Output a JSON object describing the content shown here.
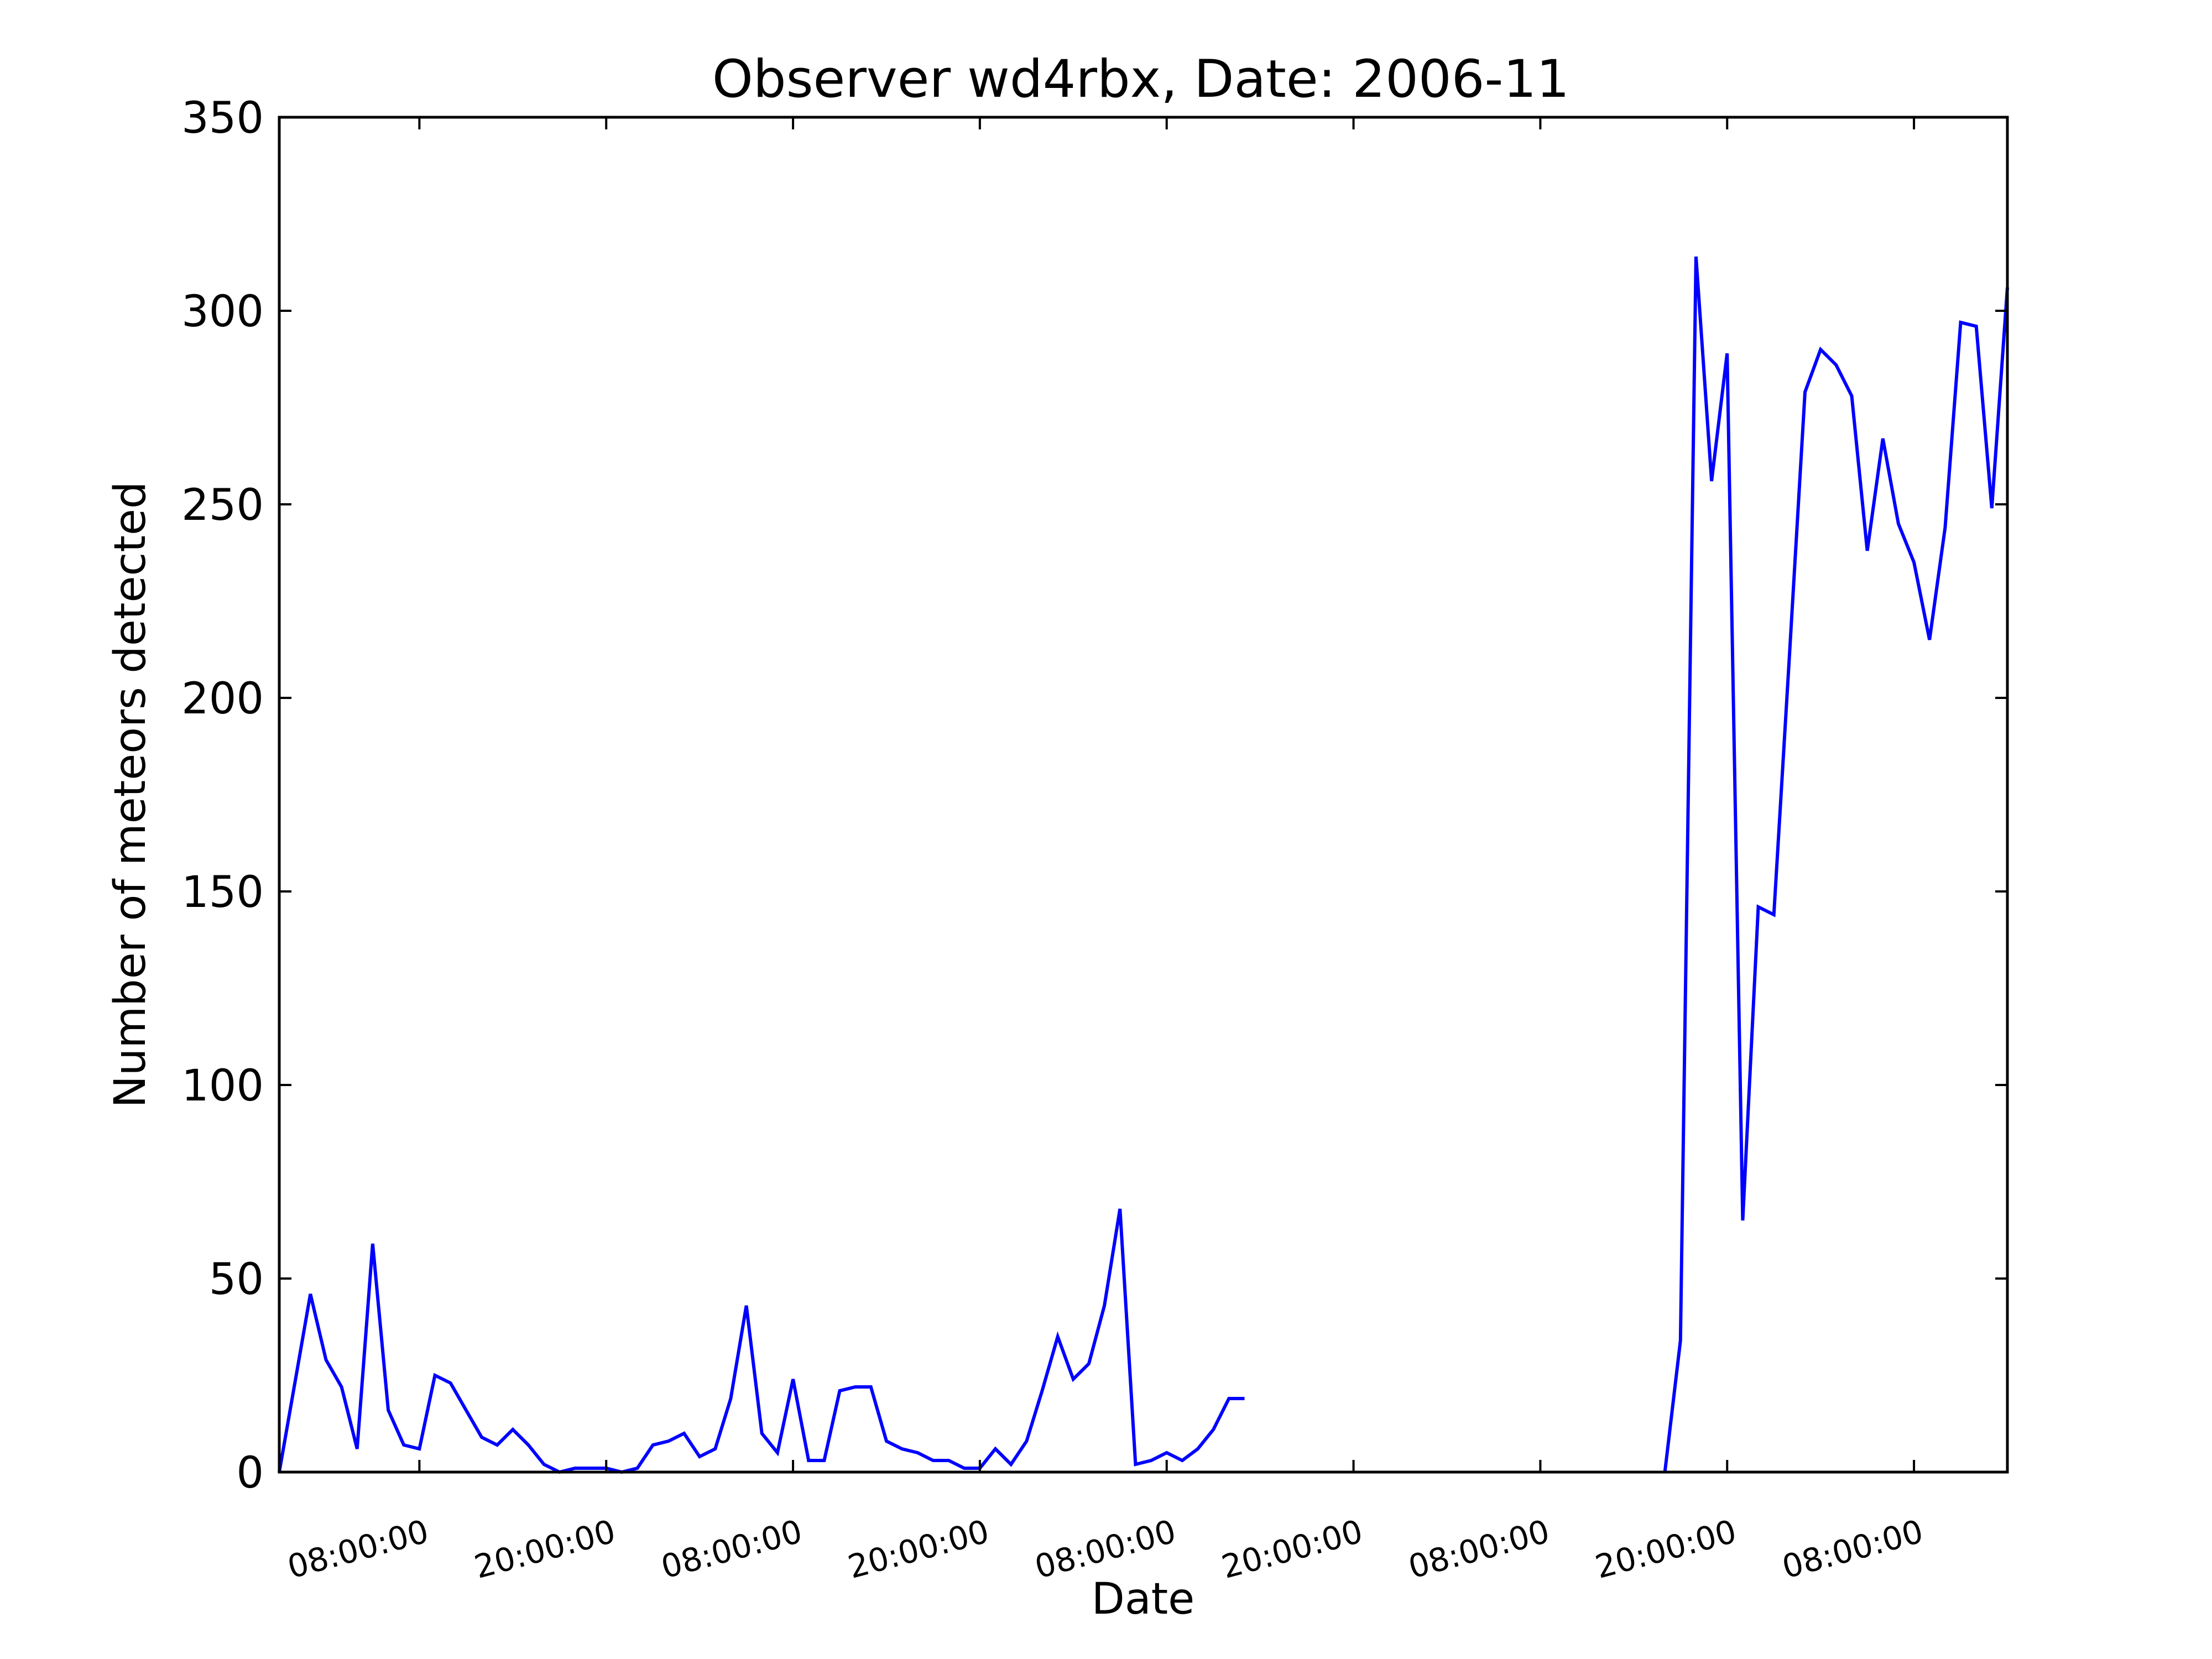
{
  "chart_data": {
    "type": "line",
    "title": "Observer wd4rbx, Date: 2006-11",
    "xlabel": "Date",
    "ylabel": "Number of meteors detected",
    "x_axis_type": "datetime",
    "xlim_hours": [
      0,
      111
    ],
    "ylim": [
      0,
      350
    ],
    "yticks": [
      0,
      50,
      100,
      150,
      200,
      250,
      300,
      350
    ],
    "xticks": [
      {
        "hours": 9,
        "label": "08:00:00"
      },
      {
        "hours": 21,
        "label": "20:00:00"
      },
      {
        "hours": 33,
        "label": "08:00:00"
      },
      {
        "hours": 45,
        "label": "20:00:00"
      },
      {
        "hours": 57,
        "label": "08:00:00"
      },
      {
        "hours": 69,
        "label": "20:00:00"
      },
      {
        "hours": 81,
        "label": "08:00:00"
      },
      {
        "hours": 93,
        "label": "20:00:00"
      },
      {
        "hours": 105,
        "label": "08:00:00"
      }
    ],
    "xtick_rotation_deg": -15,
    "grid": false,
    "legend": "none",
    "series": [
      {
        "color": "#0000ff",
        "segments": [
          [
            [
              0,
              0
            ],
            [
              1,
              23
            ],
            [
              2,
              46
            ],
            [
              3,
              29
            ],
            [
              4,
              22
            ],
            [
              5,
              6
            ],
            [
              6,
              59
            ],
            [
              7,
              16
            ],
            [
              8,
              7
            ],
            [
              9,
              6
            ],
            [
              10,
              25
            ],
            [
              11,
              23
            ],
            [
              12,
              16
            ],
            [
              13,
              9
            ],
            [
              14,
              7
            ],
            [
              15,
              11
            ],
            [
              16,
              7
            ],
            [
              17,
              2
            ],
            [
              18,
              0
            ],
            [
              19,
              1
            ],
            [
              20,
              1
            ],
            [
              21,
              1
            ],
            [
              22,
              0
            ],
            [
              23,
              1
            ],
            [
              24,
              7
            ],
            [
              25,
              8
            ],
            [
              26,
              10
            ],
            [
              27,
              4
            ],
            [
              28,
              6
            ],
            [
              29,
              19
            ],
            [
              30,
              43
            ],
            [
              31,
              10
            ],
            [
              32,
              5
            ],
            [
              33,
              24
            ],
            [
              34,
              3
            ],
            [
              35,
              3
            ],
            [
              36,
              21
            ],
            [
              37,
              22
            ],
            [
              38,
              22
            ],
            [
              39,
              8
            ],
            [
              40,
              6
            ],
            [
              41,
              5
            ],
            [
              42,
              3
            ],
            [
              43,
              3
            ],
            [
              44,
              1
            ],
            [
              45,
              1
            ],
            [
              46,
              6
            ],
            [
              47,
              2
            ],
            [
              48,
              8
            ],
            [
              49,
              21
            ],
            [
              50,
              35
            ],
            [
              51,
              24
            ],
            [
              52,
              28
            ],
            [
              53,
              43
            ],
            [
              54,
              68
            ],
            [
              55,
              2
            ],
            [
              56,
              3
            ],
            [
              57,
              5
            ],
            [
              58,
              3
            ],
            [
              59,
              6
            ],
            [
              60,
              11
            ],
            [
              61,
              19
            ],
            [
              62,
              19
            ]
          ],
          [
            [
              89,
              0
            ],
            [
              90,
              34
            ],
            [
              91,
              314
            ],
            [
              92,
              256
            ],
            [
              93,
              289
            ],
            [
              94,
              65
            ],
            [
              95,
              146
            ],
            [
              96,
              144
            ],
            [
              97,
              211
            ],
            [
              98,
              279
            ],
            [
              99,
              290
            ],
            [
              100,
              286
            ],
            [
              101,
              278
            ],
            [
              102,
              238
            ],
            [
              103,
              267
            ],
            [
              104,
              245
            ],
            [
              105,
              235
            ],
            [
              106,
              215
            ],
            [
              107,
              244
            ],
            [
              108,
              297
            ],
            [
              109,
              296
            ],
            [
              110,
              249
            ],
            [
              111,
              306
            ]
          ]
        ]
      }
    ]
  }
}
